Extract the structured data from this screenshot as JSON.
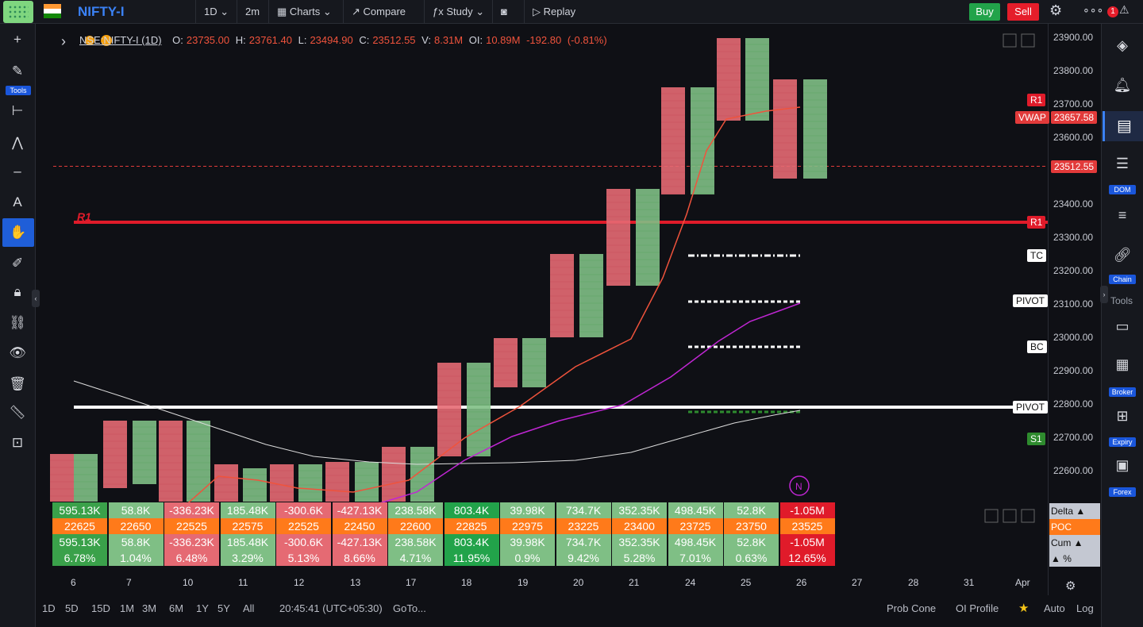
{
  "header": {
    "symbol": "NIFTY-I",
    "interval": "1D",
    "timeframe": "2m",
    "charts_label": "Charts",
    "compare_label": "Compare",
    "study_label": "Study",
    "replay_label": "Replay",
    "buy_label": "Buy",
    "sell_label": "Sell",
    "notif_count": "1"
  },
  "legend": {
    "instrument": "NSE:NIFTY-I (1D)",
    "o_label": "O:",
    "o": "23735.00",
    "h_label": "H:",
    "h": "23761.40",
    "l_label": "L:",
    "l": "23494.90",
    "c_label": "C:",
    "c": "23512.55",
    "v_label": "V:",
    "v": "8.31M",
    "oi_label": "OI:",
    "oi": "10.89M",
    "change": "-192.80",
    "change_pct": "(-0.81%)"
  },
  "left_toolbar": {
    "tools_label": "Tools"
  },
  "right_toolbar": {
    "dom_label": "DOM",
    "chain_label": "Chain",
    "tools_label": "Tools",
    "broker_label": "Broker",
    "expiry_label": "Expiry",
    "forex_label": "Forex"
  },
  "price_axis": {
    "ticks": [
      "23900.00",
      "23800.00",
      "23700.00",
      "23600.00",
      "23400.00",
      "23300.00",
      "23200.00",
      "23100.00",
      "23000.00",
      "22900.00",
      "22800.00",
      "22700.00",
      "22600.00"
    ],
    "vwap_label": "VWAP",
    "vwap_value": "23657.58",
    "last_price": "23512.55",
    "r1_label": "R1",
    "s1_label": "S1",
    "tc_label": "TC",
    "pivot_label": "PIVOT",
    "bc_label": "BC",
    "pivot2_label": "PIVOT"
  },
  "chart_overlay": {
    "r1_text": "R1",
    "n_badge": "N"
  },
  "x_axis": [
    "6",
    "7",
    "10",
    "11",
    "12",
    "13",
    "17",
    "18",
    "19",
    "20",
    "21",
    "24",
    "25",
    "26",
    "27",
    "28",
    "31",
    "Apr"
  ],
  "table": {
    "delta": [
      "595.13K",
      "58.8K",
      "-336.23K",
      "185.48K",
      "-300.6K",
      "-427.13K",
      "238.58K",
      "803.4K",
      "39.98K",
      "734.7K",
      "352.35K",
      "498.45K",
      "52.8K",
      "-1.05M"
    ],
    "poc": [
      "22625",
      "22650",
      "22525",
      "22575",
      "22525",
      "22450",
      "22600",
      "22825",
      "22975",
      "23225",
      "23400",
      "23725",
      "23750",
      "23525"
    ],
    "cum": [
      "595.13K",
      "58.8K",
      "-336.23K",
      "185.48K",
      "-300.6K",
      "-427.13K",
      "238.58K",
      "803.4K",
      "39.98K",
      "734.7K",
      "352.35K",
      "498.45K",
      "52.8K",
      "-1.05M"
    ],
    "pct": [
      "6.78%",
      "1.04%",
      "6.48%",
      "3.29%",
      "5.13%",
      "8.66%",
      "4.71%",
      "11.95%",
      "0.9%",
      "9.42%",
      "5.28%",
      "7.01%",
      "0.63%",
      "12.65%"
    ],
    "legend": [
      "Delta ▲",
      "POC",
      "Cum ▲",
      "▲ %"
    ]
  },
  "bottom_bar": {
    "ranges": [
      "1D",
      "5D",
      "15D",
      "1M",
      "3M",
      "6M",
      "1Y",
      "5Y",
      "All"
    ],
    "clock": "20:45:41 (UTC+05:30)",
    "goto": "GoTo...",
    "prob_cone": "Prob Cone",
    "oi_profile": "OI Profile",
    "auto": "Auto",
    "log": "Log"
  },
  "colors": {
    "up": "#2ea043",
    "down": "#e23a3a",
    "poc": "#ff7a1a",
    "accent": "#3b82f6"
  }
}
